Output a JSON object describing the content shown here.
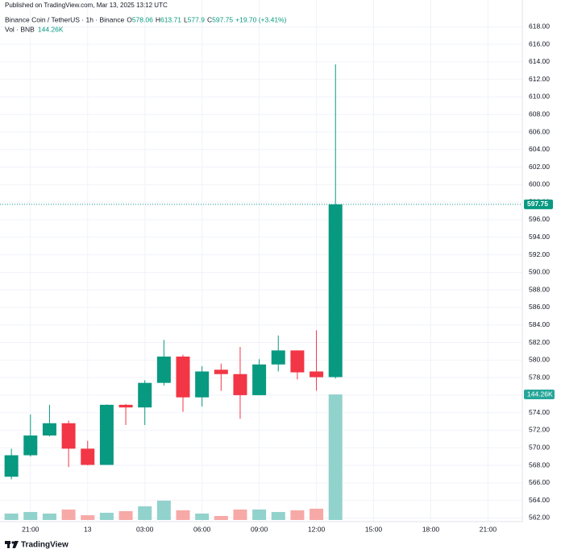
{
  "chart_data": {
    "type": "candlestick",
    "published": "Published on TradingView.com, Mar 13, 2025 13:12 UTC",
    "title": "Binance Coin / TetherUS · 1h · Binance",
    "legend_labels": {
      "open": "O",
      "high": "H",
      "low": "L",
      "close": "C"
    },
    "change": "+19.70 (+3.41%)",
    "volume_title": "Vol · BNB",
    "brand": "TradingView",
    "up_color": "#089981",
    "down_color": "#f23645",
    "volume_up_color": "#92d2cc",
    "volume_down_color": "#f7a9a7",
    "grid": true,
    "x": [
      0,
      1,
      2,
      3,
      4,
      5,
      6,
      7,
      8,
      9,
      10,
      11,
      12,
      13,
      14,
      15,
      16,
      17
    ],
    "open": [
      566.7,
      569.15,
      571.4,
      572.8,
      569.9,
      568.05,
      574.9,
      574.6,
      577.4,
      580.4,
      575.75,
      578.9,
      578.4,
      576.0,
      579.5,
      581.1,
      578.7,
      578.06
    ],
    "high": [
      569.9,
      573.8,
      574.9,
      573.1,
      570.8,
      574.95,
      575.0,
      577.7,
      582.3,
      580.6,
      579.3,
      579.6,
      581.5,
      580.1,
      582.8,
      581.1,
      583.4,
      613.71
    ],
    "low": [
      566.4,
      569.0,
      571.3,
      567.8,
      568.0,
      568.05,
      572.6,
      572.6,
      577.1,
      574.1,
      574.7,
      576.5,
      573.3,
      576.0,
      578.7,
      577.8,
      576.5,
      577.9
    ],
    "close": [
      569.15,
      571.4,
      572.8,
      569.9,
      568.05,
      574.9,
      574.6,
      577.4,
      580.4,
      575.75,
      578.7,
      578.4,
      576.0,
      579.5,
      581.1,
      578.6,
      578.05,
      597.75
    ],
    "volume": {
      "values": [
        7.4,
        9.2,
        7.4,
        12.0,
        5.5,
        8.3,
        10.2,
        15.7,
        22.2,
        11.1,
        7.4,
        4.6,
        12.0,
        12.0,
        9.2,
        11.1,
        13.0,
        144.26
      ],
      "last_label": "144.26K"
    },
    "xlim": [
      -0.3,
      26.8
    ],
    "xticks": [
      {
        "value": 1,
        "label": "21:00"
      },
      {
        "value": 4,
        "label": "13"
      },
      {
        "value": 7,
        "label": "03:00"
      },
      {
        "value": 10,
        "label": "06:00"
      },
      {
        "value": 13,
        "label": "09:00"
      },
      {
        "value": 16,
        "label": "12:00"
      },
      {
        "value": 19,
        "label": "15:00"
      },
      {
        "value": 22,
        "label": "18:00"
      },
      {
        "value": 25,
        "label": "21:00"
      }
    ],
    "ylim": [
      561.4,
      619.4
    ],
    "yticks": [
      {
        "value": 562,
        "label": "562.00"
      },
      {
        "value": 564,
        "label": "564.00"
      },
      {
        "value": 566,
        "label": "566.00"
      },
      {
        "value": 568,
        "label": "568.00"
      },
      {
        "value": 570,
        "label": "570.00"
      },
      {
        "value": 572,
        "label": "572.00"
      },
      {
        "value": 574,
        "label": "574.00"
      },
      {
        "value": 576,
        "label": "576.00"
      },
      {
        "value": 578,
        "label": "578.00"
      },
      {
        "value": 580,
        "label": "580.00"
      },
      {
        "value": 582,
        "label": "582.00"
      },
      {
        "value": 584,
        "label": "584.00"
      },
      {
        "value": 586,
        "label": "586.00"
      },
      {
        "value": 588,
        "label": "588.00"
      },
      {
        "value": 590,
        "label": "590.00"
      },
      {
        "value": 592,
        "label": "592.00"
      },
      {
        "value": 594,
        "label": "594.00"
      },
      {
        "value": 596,
        "label": "596.00"
      },
      {
        "value": 598,
        "label": "598.00"
      },
      {
        "value": 600,
        "label": "600.00"
      },
      {
        "value": 602,
        "label": "602.00"
      },
      {
        "value": 604,
        "label": "604.00"
      },
      {
        "value": 606,
        "label": "606.00"
      },
      {
        "value": 608,
        "label": "608.00"
      },
      {
        "value": 610,
        "label": "610.00"
      },
      {
        "value": 612,
        "label": "612.00"
      },
      {
        "value": 614,
        "label": "614.00"
      },
      {
        "value": 616,
        "label": "616.00"
      },
      {
        "value": 618,
        "label": "618.00"
      }
    ]
  }
}
